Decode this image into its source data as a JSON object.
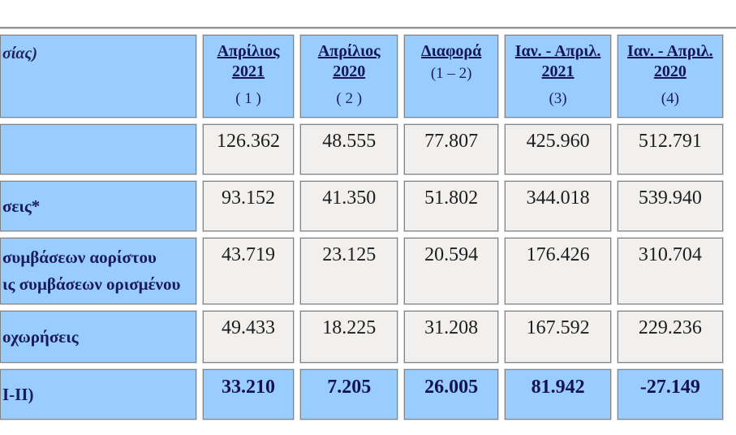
{
  "colors": {
    "header_blue": "#99ccff",
    "cell_gray": "#f1f0ee",
    "border_gray": "#838383",
    "text_navy": "#15155a",
    "text_black": "#1d1d1d"
  },
  "table": {
    "corner_fragment": "σίας)",
    "header": {
      "columns": [
        {
          "line1": "Απρίλιος",
          "line2": "2021",
          "sub": "( 1 )"
        },
        {
          "line1": "Απρίλιος",
          "line2": "2020",
          "sub": "( 2 )"
        },
        {
          "line1": "Διαφορά",
          "sub": "(1 – 2)"
        },
        {
          "line1": "Ιαν. - Απριλ.",
          "line2": "2021",
          "sub": "(3)"
        },
        {
          "line1": "Ιαν. - Απριλ.",
          "line2": "2020",
          "sub": "(4)"
        }
      ]
    },
    "rows": [
      {
        "label_lines": [],
        "values": [
          "126.362",
          "48.555",
          "77.807",
          "425.960",
          "512.791"
        ]
      },
      {
        "label_lines": [
          "σεις*"
        ],
        "values": [
          "93.152",
          "41.350",
          "51.802",
          "344.018",
          "539.940"
        ]
      },
      {
        "label_lines": [
          "συμβάσεων αορίστου",
          "ις συμβάσεων ορισμένου"
        ],
        "values": [
          "43.719",
          "23.125",
          "20.594",
          "176.426",
          "310.704"
        ]
      },
      {
        "label_lines": [
          "οχωρήσεις"
        ],
        "values": [
          "49.433",
          "18.225",
          "31.208",
          "167.592",
          "229.236"
        ]
      },
      {
        "label_lines": [
          "Ι-ΙΙ)"
        ],
        "values": [
          "33.210",
          "7.205",
          "26.005",
          "81.942",
          "-27.149"
        ]
      }
    ]
  }
}
